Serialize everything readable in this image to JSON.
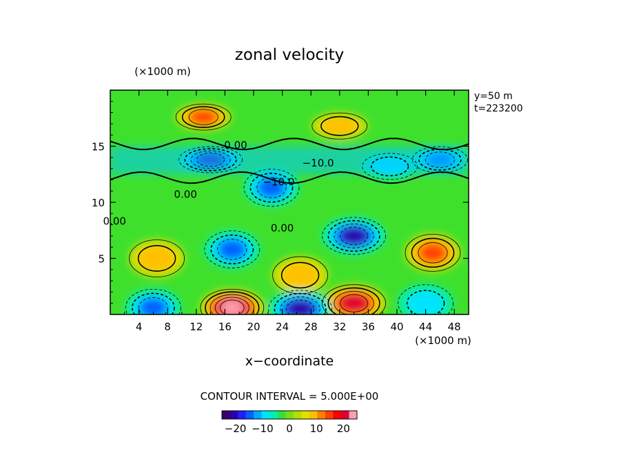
{
  "chart_data": {
    "type": "heatmap",
    "title": "zonal velocity",
    "xlabel": "x−coordinate",
    "x_unit": "(×1000 m)",
    "y_unit": "(×1000 m)",
    "xlim": [
      0,
      50
    ],
    "ylim": [
      0,
      20
    ],
    "x_ticks": [
      4,
      8,
      12,
      16,
      20,
      24,
      28,
      32,
      36,
      40,
      44,
      48
    ],
    "y_ticks": [
      5,
      10,
      15
    ],
    "info": [
      "y=50 m",
      "t=223200"
    ],
    "contour_interval_label": "CONTOUR INTERVAL = 5.000E+00",
    "contour_labels": [
      {
        "text": "0.00",
        "x": 17.5,
        "y": 14.8
      },
      {
        "text": "−10.0",
        "x": 29.0,
        "y": 13.2
      },
      {
        "text": "−10.0",
        "x": 23.5,
        "y": 11.5
      },
      {
        "text": "0.00",
        "x": 10.5,
        "y": 10.4
      },
      {
        "text": "0.00",
        "x": 0.6,
        "y": 8.0
      },
      {
        "text": "0.00",
        "x": 24.0,
        "y": 7.4
      }
    ],
    "features": [
      {
        "x": 13.0,
        "y": 17.6,
        "value": 15
      },
      {
        "x": 32.0,
        "y": 16.8,
        "value": 14
      },
      {
        "x": 14.0,
        "y": 13.8,
        "value": -20
      },
      {
        "x": 46.0,
        "y": 13.8,
        "value": -16
      },
      {
        "x": 39.0,
        "y": 13.2,
        "value": -14
      },
      {
        "x": 22.5,
        "y": 11.3,
        "value": -15
      },
      {
        "x": 34.0,
        "y": 7.0,
        "value": -22
      },
      {
        "x": 17.0,
        "y": 5.8,
        "value": -17
      },
      {
        "x": 6.5,
        "y": 5.0,
        "value": 14
      },
      {
        "x": 45.0,
        "y": 5.5,
        "value": 17
      },
      {
        "x": 26.5,
        "y": 3.5,
        "value": 13
      },
      {
        "x": 17.0,
        "y": 0.6,
        "value": 26
      },
      {
        "x": 34.0,
        "y": 1.0,
        "value": 20
      },
      {
        "x": 26.5,
        "y": 0.5,
        "value": -24
      },
      {
        "x": 6.0,
        "y": 0.6,
        "value": -16
      },
      {
        "x": 44.0,
        "y": 1.0,
        "value": -14
      }
    ],
    "colorbar": {
      "range": [
        -25,
        25
      ],
      "ticks": [
        "−20",
        "−10",
        "0",
        "10",
        "20"
      ],
      "colors": [
        "#3a006e",
        "#2d00aa",
        "#1e1eff",
        "#0060ff",
        "#00a8ff",
        "#00e4ff",
        "#00f0b0",
        "#2ee040",
        "#78e010",
        "#b4e000",
        "#e0e000",
        "#ffc000",
        "#ff8000",
        "#ff4000",
        "#ff0000",
        "#e00030",
        "#ff9fb0"
      ]
    }
  }
}
